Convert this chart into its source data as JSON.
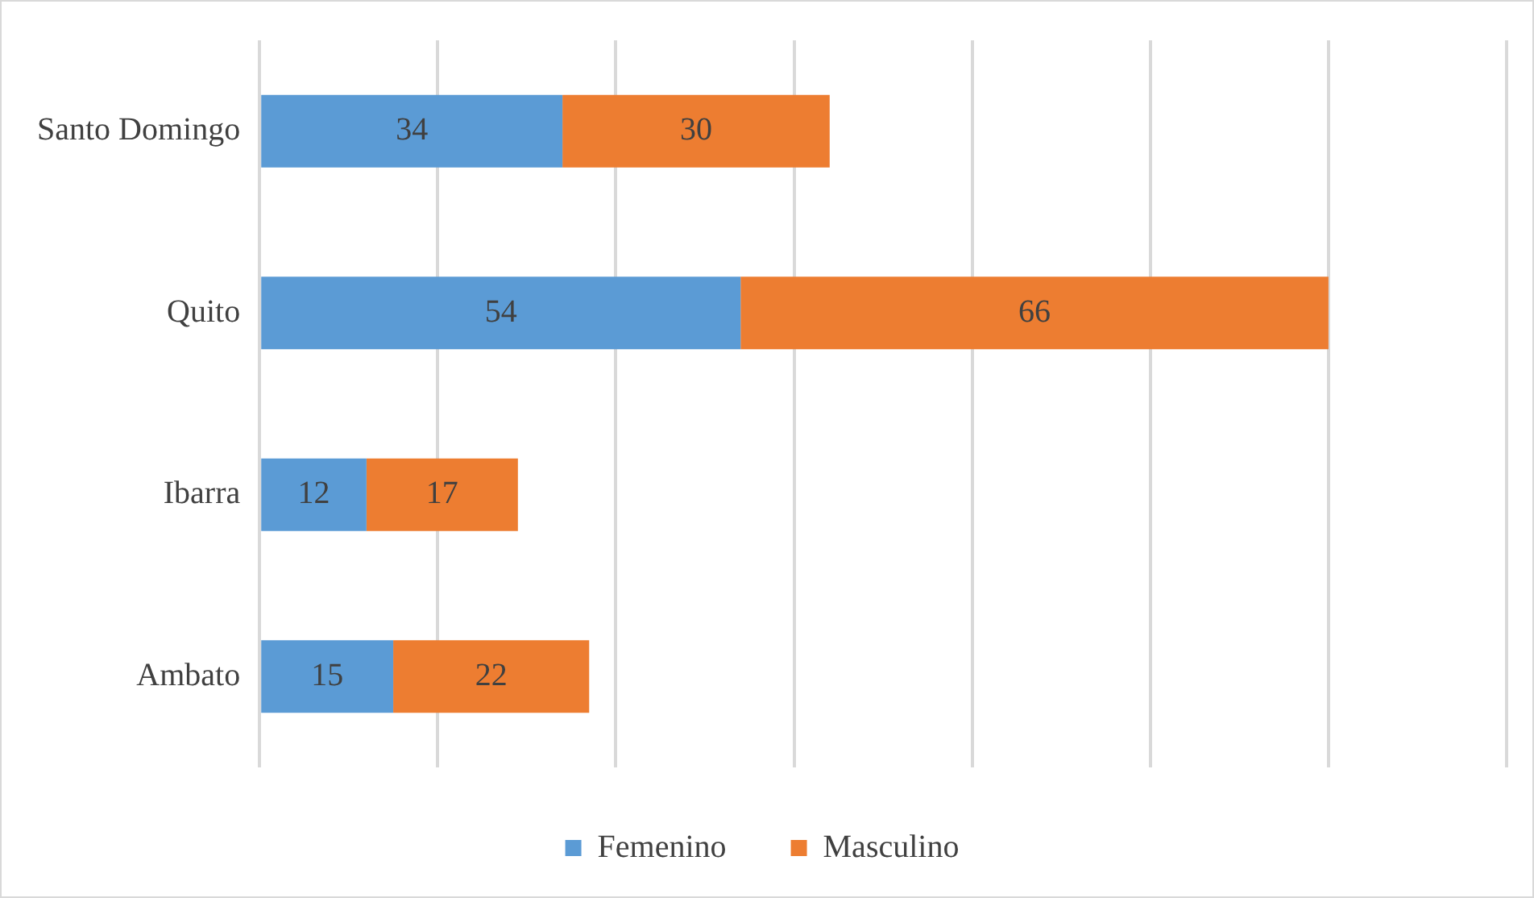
{
  "chart_data": {
    "type": "bar",
    "orientation": "horizontal",
    "stacked": true,
    "categories": [
      "Santo Domingo",
      "Quito",
      "Ibarra",
      "Ambato"
    ],
    "series": [
      {
        "name": "Femenino",
        "color": "#5b9bd5",
        "values": [
          34,
          54,
          12,
          15
        ]
      },
      {
        "name": "Masculino",
        "color": "#ed7d31",
        "values": [
          30,
          66,
          17,
          22
        ]
      }
    ],
    "xlim": [
      0,
      140
    ],
    "xticks": [
      {
        "value": 0,
        "label": null
      },
      {
        "value": 20,
        "label": null
      },
      {
        "value": 40,
        "label": null
      },
      {
        "value": 60,
        "label": null
      },
      {
        "value": 80,
        "label": null
      },
      {
        "value": 100,
        "label": null
      },
      {
        "value": 120,
        "label": null
      },
      {
        "value": 140,
        "label": null
      }
    ],
    "grid": "x",
    "tick_labels": "y",
    "legend": "bottom",
    "data_labels": true
  }
}
